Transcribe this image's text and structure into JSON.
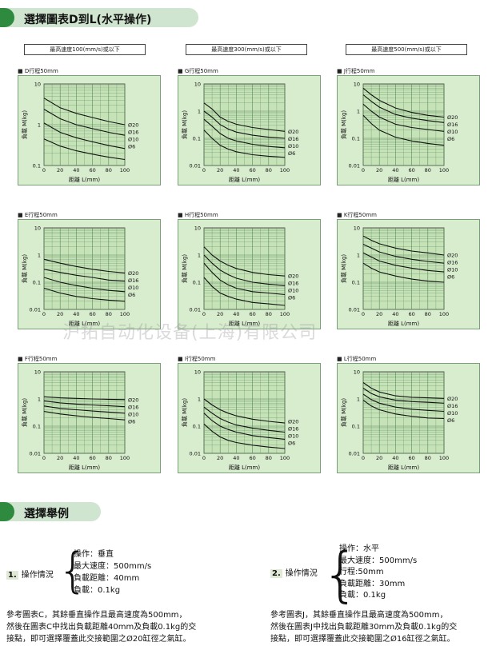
{
  "header1": "選擇圖表D到L(水平操作)",
  "header2": "選擇舉例",
  "speeds": [
    "最高速度100(mm/s)或以下",
    "最高速度300(mm/s)或以下",
    "最高速度500(mm/s)或以下"
  ],
  "watermark": "沪拓自动化设备(上海)有限公司",
  "xlabel": "距離 L(mm)",
  "ylabel": "負載 M(kg)",
  "chart_data": [
    {
      "type": "line",
      "title": "D行程50mm",
      "xlim": [
        0,
        100
      ],
      "ylim": [
        0.1,
        10
      ],
      "ylog": true,
      "xticks": [
        0,
        20,
        40,
        60,
        80,
        100
      ],
      "series": [
        {
          "name": "Ø20",
          "x": [
            0,
            20,
            40,
            60,
            80,
            100
          ],
          "y": [
            4.5,
            2.6,
            1.9,
            1.5,
            1.2,
            1.0
          ]
        },
        {
          "name": "Ø16",
          "x": [
            0,
            20,
            40,
            60,
            80,
            100
          ],
          "y": [
            2.4,
            1.4,
            1.0,
            0.8,
            0.65,
            0.55
          ]
        },
        {
          "name": "Ø10",
          "x": [
            0,
            20,
            40,
            60,
            80,
            100
          ],
          "y": [
            1.1,
            0.65,
            0.48,
            0.38,
            0.31,
            0.26
          ]
        },
        {
          "name": "Ø6",
          "x": [
            0,
            20,
            40,
            60,
            80,
            100
          ],
          "y": [
            0.45,
            0.3,
            0.23,
            0.19,
            0.16,
            0.14
          ]
        }
      ]
    },
    {
      "type": "line",
      "title": "G行程50mm",
      "xlim": [
        0,
        100
      ],
      "ylim": [
        0.01,
        10
      ],
      "ylog": true,
      "xticks": [
        0,
        20,
        40,
        60,
        80,
        100
      ],
      "series": [
        {
          "name": "Ø20",
          "x": [
            0,
            10,
            20,
            30,
            40,
            60,
            80,
            100
          ],
          "y": [
            2.0,
            1.2,
            0.6,
            0.42,
            0.33,
            0.25,
            0.21,
            0.18
          ]
        },
        {
          "name": "Ø16",
          "x": [
            0,
            10,
            20,
            30,
            40,
            60,
            80,
            100
          ],
          "y": [
            1.0,
            0.6,
            0.32,
            0.22,
            0.17,
            0.13,
            0.11,
            0.1
          ]
        },
        {
          "name": "Ø10",
          "x": [
            0,
            10,
            20,
            30,
            40,
            60,
            80,
            100
          ],
          "y": [
            0.5,
            0.28,
            0.15,
            0.1,
            0.08,
            0.06,
            0.05,
            0.045
          ]
        },
        {
          "name": "Ø6",
          "x": [
            0,
            10,
            20,
            30,
            40,
            60,
            80,
            100
          ],
          "y": [
            0.2,
            0.1,
            0.055,
            0.04,
            0.032,
            0.025,
            0.022,
            0.02
          ]
        }
      ]
    },
    {
      "type": "line",
      "title": "J行程50mm",
      "xlim": [
        0,
        100
      ],
      "ylim": [
        0.01,
        10
      ],
      "ylog": true,
      "xticks": [
        0,
        20,
        40,
        60,
        80,
        100
      ],
      "series": [
        {
          "name": "Ø20",
          "x": [
            0,
            10,
            20,
            40,
            60,
            80,
            100
          ],
          "y": [
            7.0,
            4.0,
            2.5,
            1.3,
            0.9,
            0.7,
            0.6
          ]
        },
        {
          "name": "Ø16",
          "x": [
            0,
            10,
            20,
            40,
            60,
            80,
            100
          ],
          "y": [
            4.0,
            2.3,
            1.4,
            0.75,
            0.55,
            0.45,
            0.38
          ]
        },
        {
          "name": "Ø10",
          "x": [
            0,
            10,
            20,
            40,
            60,
            80,
            100
          ],
          "y": [
            1.8,
            1.0,
            0.6,
            0.33,
            0.25,
            0.21,
            0.18
          ]
        },
        {
          "name": "Ø6",
          "x": [
            0,
            10,
            20,
            40,
            60,
            80,
            100
          ],
          "y": [
            0.7,
            0.35,
            0.2,
            0.11,
            0.08,
            0.065,
            0.055
          ]
        }
      ]
    },
    {
      "type": "line",
      "title": "E行程50mm",
      "xlim": [
        0,
        100
      ],
      "ylim": [
        0.01,
        10
      ],
      "ylog": true,
      "xticks": [
        0,
        20,
        40,
        60,
        80,
        100
      ],
      "series": [
        {
          "name": "Ø20",
          "x": [
            0,
            20,
            40,
            60,
            80,
            100
          ],
          "y": [
            0.7,
            0.5,
            0.38,
            0.3,
            0.25,
            0.22
          ]
        },
        {
          "name": "Ø16",
          "x": [
            0,
            20,
            40,
            60,
            80,
            100
          ],
          "y": [
            0.3,
            0.23,
            0.18,
            0.15,
            0.12,
            0.11
          ]
        },
        {
          "name": "Ø10",
          "x": [
            0,
            20,
            40,
            60,
            80,
            100
          ],
          "y": [
            0.15,
            0.1,
            0.075,
            0.06,
            0.05,
            0.045
          ]
        },
        {
          "name": "Ø6",
          "x": [
            0,
            20,
            40,
            60,
            80,
            100
          ],
          "y": [
            0.06,
            0.04,
            0.03,
            0.025,
            0.022,
            0.02
          ]
        }
      ]
    },
    {
      "type": "line",
      "title": "H行程50mm",
      "xlim": [
        0,
        100
      ],
      "ylim": [
        0.01,
        10
      ],
      "ylog": true,
      "xticks": [
        0,
        20,
        40,
        60,
        80,
        100
      ],
      "series": [
        {
          "name": "Ø20",
          "x": [
            0,
            10,
            20,
            30,
            40,
            60,
            80,
            100
          ],
          "y": [
            2.0,
            1.0,
            0.6,
            0.42,
            0.32,
            0.23,
            0.19,
            0.17
          ]
        },
        {
          "name": "Ø16",
          "x": [
            0,
            10,
            20,
            30,
            40,
            60,
            80,
            100
          ],
          "y": [
            1.0,
            0.5,
            0.28,
            0.19,
            0.14,
            0.1,
            0.085,
            0.075
          ]
        },
        {
          "name": "Ø10",
          "x": [
            0,
            10,
            20,
            30,
            40,
            60,
            80,
            100
          ],
          "y": [
            0.5,
            0.23,
            0.12,
            0.08,
            0.06,
            0.045,
            0.04,
            0.035
          ]
        },
        {
          "name": "Ø6",
          "x": [
            0,
            10,
            20,
            30,
            40,
            60,
            80,
            100
          ],
          "y": [
            0.15,
            0.07,
            0.04,
            0.03,
            0.024,
            0.018,
            0.016,
            0.014
          ]
        }
      ]
    },
    {
      "type": "line",
      "title": "K行程50mm",
      "xlim": [
        0,
        100
      ],
      "ylim": [
        0.01,
        10
      ],
      "ylog": true,
      "xticks": [
        0,
        20,
        40,
        60,
        80,
        100
      ],
      "series": [
        {
          "name": "Ø20",
          "x": [
            0,
            10,
            20,
            40,
            60,
            80,
            100
          ],
          "y": [
            5.0,
            3.5,
            2.6,
            1.8,
            1.4,
            1.2,
            1.0
          ]
        },
        {
          "name": "Ø16",
          "x": [
            0,
            10,
            20,
            40,
            60,
            80,
            100
          ],
          "y": [
            2.5,
            1.8,
            1.3,
            0.9,
            0.7,
            0.58,
            0.5
          ]
        },
        {
          "name": "Ø10",
          "x": [
            0,
            10,
            20,
            40,
            60,
            80,
            100
          ],
          "y": [
            1.2,
            0.85,
            0.6,
            0.42,
            0.33,
            0.27,
            0.24
          ]
        },
        {
          "name": "Ø6",
          "x": [
            0,
            10,
            20,
            40,
            60,
            80,
            100
          ],
          "y": [
            0.5,
            0.33,
            0.24,
            0.17,
            0.13,
            0.11,
            0.1
          ]
        }
      ]
    },
    {
      "type": "line",
      "title": "F行程50mm",
      "xlim": [
        0,
        100
      ],
      "ylim": [
        0.01,
        10
      ],
      "ylog": true,
      "xticks": [
        0,
        20,
        40,
        60,
        80,
        100
      ],
      "series": [
        {
          "name": "Ø20",
          "x": [
            0,
            20,
            40,
            60,
            80,
            100
          ],
          "y": [
            1.2,
            1.1,
            1.05,
            1.0,
            0.97,
            0.95
          ]
        },
        {
          "name": "Ø16",
          "x": [
            0,
            20,
            40,
            60,
            80,
            100
          ],
          "y": [
            0.85,
            0.72,
            0.65,
            0.6,
            0.56,
            0.52
          ]
        },
        {
          "name": "Ø10",
          "x": [
            0,
            20,
            40,
            60,
            80,
            100
          ],
          "y": [
            0.55,
            0.45,
            0.4,
            0.36,
            0.33,
            0.3
          ]
        },
        {
          "name": "Ø6",
          "x": [
            0,
            20,
            40,
            60,
            80,
            100
          ],
          "y": [
            0.35,
            0.28,
            0.24,
            0.21,
            0.19,
            0.17
          ]
        }
      ]
    },
    {
      "type": "line",
      "title": "I行程50mm",
      "xlim": [
        0,
        100
      ],
      "ylim": [
        0.01,
        10
      ],
      "ylog": true,
      "xticks": [
        0,
        20,
        40,
        60,
        80,
        100
      ],
      "series": [
        {
          "name": "Ø20",
          "x": [
            0,
            10,
            20,
            30,
            40,
            60,
            80,
            100
          ],
          "y": [
            1.0,
            0.6,
            0.4,
            0.3,
            0.24,
            0.18,
            0.15,
            0.13
          ]
        },
        {
          "name": "Ø16",
          "x": [
            0,
            10,
            20,
            30,
            40,
            60,
            80,
            100
          ],
          "y": [
            0.5,
            0.3,
            0.19,
            0.14,
            0.11,
            0.085,
            0.07,
            0.06
          ]
        },
        {
          "name": "Ø10",
          "x": [
            0,
            10,
            20,
            30,
            40,
            60,
            80,
            100
          ],
          "y": [
            0.3,
            0.16,
            0.1,
            0.075,
            0.06,
            0.045,
            0.038,
            0.033
          ]
        },
        {
          "name": "Ø6",
          "x": [
            0,
            10,
            20,
            30,
            40,
            60,
            80,
            100
          ],
          "y": [
            0.12,
            0.065,
            0.04,
            0.03,
            0.025,
            0.02,
            0.017,
            0.015
          ]
        }
      ]
    },
    {
      "type": "line",
      "title": "L行程50mm",
      "xlim": [
        0,
        100
      ],
      "ylim": [
        0.01,
        10
      ],
      "ylog": true,
      "xticks": [
        0,
        20,
        40,
        60,
        80,
        100
      ],
      "series": [
        {
          "name": "Ø20",
          "x": [
            0,
            10,
            20,
            40,
            60,
            80,
            100
          ],
          "y": [
            4.0,
            2.5,
            1.8,
            1.3,
            1.15,
            1.1,
            1.05
          ]
        },
        {
          "name": "Ø16",
          "x": [
            0,
            10,
            20,
            40,
            60,
            80,
            100
          ],
          "y": [
            2.5,
            1.6,
            1.2,
            0.9,
            0.8,
            0.75,
            0.7
          ]
        },
        {
          "name": "Ø10",
          "x": [
            0,
            10,
            20,
            40,
            60,
            80,
            100
          ],
          "y": [
            1.5,
            0.95,
            0.7,
            0.5,
            0.42,
            0.38,
            0.35
          ]
        },
        {
          "name": "Ø6",
          "x": [
            0,
            10,
            20,
            40,
            60,
            80,
            100
          ],
          "y": [
            0.9,
            0.55,
            0.4,
            0.28,
            0.23,
            0.2,
            0.19
          ]
        }
      ]
    }
  ],
  "example1": {
    "num": "1.",
    "label": "操作情況",
    "lines": [
      "操作：垂直",
      "最大速度：500mm/s",
      "負載距離：40mm",
      "負載：0.1kg"
    ],
    "ref": [
      "參考圖表C，其餘垂直操作且最高速度為500mm，",
      "然後在圖表C中找出負載距離40mm及負載0.1kg的交",
      "接點，即可選擇覆蓋此交接範圍之Ø20缸徑之氣缸。"
    ]
  },
  "example2": {
    "num": "2.",
    "label": "操作情況",
    "lines": [
      "操作：水平",
      "最大速度：500mm/s",
      "行程:50mm",
      "負載距離：30mm",
      "負載：0.1kg"
    ],
    "ref": [
      "參考圖表J，其餘垂直操作且最高速度為500mm，",
      "然後在圖表J中找出負載距離30mm及負載0.1kg的交",
      "接點，即可選擇覆蓋此交接範圍之Ø16缸徑之氣缸。"
    ]
  }
}
